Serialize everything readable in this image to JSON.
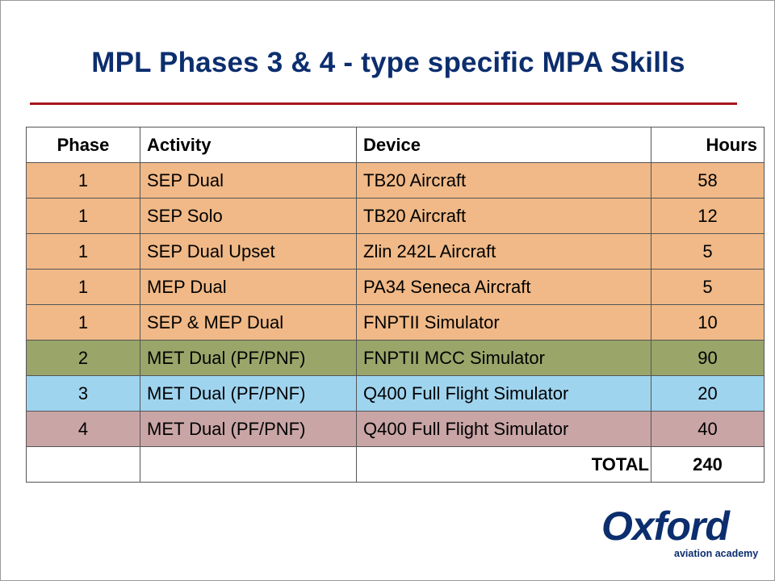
{
  "slide": {
    "title": "MPL Phases 3 & 4 - type specific MPA Skills"
  },
  "table": {
    "headers": {
      "phase": "Phase",
      "activity": "Activity",
      "device": "Device",
      "hours": "Hours"
    },
    "rows": [
      {
        "phase": "1",
        "activity": "SEP Dual",
        "device": "TB20 Aircraft",
        "hours": "58",
        "color": "#f0b987"
      },
      {
        "phase": "1",
        "activity": "SEP Solo",
        "device": "TB20 Aircraft",
        "hours": "12",
        "color": "#f0b987"
      },
      {
        "phase": "1",
        "activity": "SEP Dual Upset",
        "device": "Zlin 242L Aircraft",
        "hours": "5",
        "color": "#f0b987"
      },
      {
        "phase": "1",
        "activity": "MEP Dual",
        "device": "PA34 Seneca Aircraft",
        "hours": "5",
        "color": "#f0b987"
      },
      {
        "phase": "1",
        "activity": "SEP & MEP Dual",
        "device": "FNPTII Simulator",
        "hours": "10",
        "color": "#f0b987"
      },
      {
        "phase": "2",
        "activity": "MET Dual (PF/PNF)",
        "device": "FNPTII MCC Simulator",
        "hours": "90",
        "color": "#9aa56a"
      },
      {
        "phase": "3",
        "activity": "MET Dual (PF/PNF)",
        "device": "Q400 Full Flight Simulator",
        "hours": "20",
        "color": "#9fd4ef"
      },
      {
        "phase": "4",
        "activity": "MET Dual (PF/PNF)",
        "device": "Q400 Full Flight Simulator",
        "hours": "40",
        "color": "#c9a5a6"
      }
    ],
    "total_label": "TOTAL",
    "total_value": "240"
  },
  "logo": {
    "word": "Oxford",
    "subtitle": "aviation academy"
  }
}
